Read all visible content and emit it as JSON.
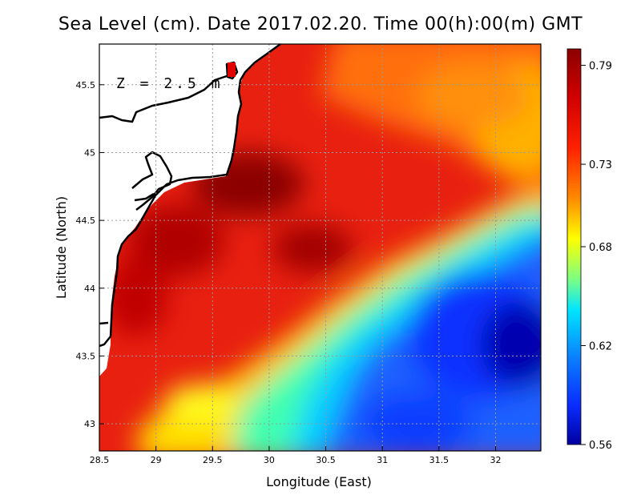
{
  "title": "Sea Level (cm). Date 2017.02.20. Time 00(h):00(m) GMT",
  "depth_label": "Z  =  2.5  m",
  "xlabel": "Longitude (East)",
  "ylabel": "Latitude (North)",
  "x_ticks": [
    "28.5",
    "29",
    "29.5",
    "30",
    "30.5",
    "31",
    "31.5",
    "32"
  ],
  "y_ticks": [
    "43",
    "43.5",
    "44",
    "44.5",
    "45",
    "45.5"
  ],
  "colorbar_ticks": [
    "0.79",
    "0.73",
    "0.68",
    "0.62",
    "0.56"
  ],
  "colors": {
    "coast": "#000000",
    "land": "#ffffff",
    "grid": "#9a9a9a",
    "dark_red": "#8b0000",
    "red": "#e01010",
    "orange": "#ff8c00",
    "yellow": "#ffff00",
    "cyan": "#00e5ff",
    "blue": "#0a3cff",
    "navy": "#0000a0"
  },
  "chart_data": {
    "type": "heatmap",
    "title": "Sea Level (cm). Date 2017.02.20. Time 00(h):00(m) GMT",
    "xlabel": "Longitude (East)",
    "ylabel": "Latitude (North)",
    "xlim": [
      28.5,
      32.4
    ],
    "ylim": [
      42.8,
      45.8
    ],
    "colorbar_range": [
      0.56,
      0.8
    ],
    "colorbar_ticks": [
      0.79,
      0.73,
      0.68,
      0.62,
      0.56
    ],
    "grid": true,
    "field_description_points": [
      {
        "lon": 29.8,
        "lat": 44.8,
        "value": 0.79
      },
      {
        "lon": 29.0,
        "lat": 44.2,
        "value": 0.77
      },
      {
        "lon": 30.3,
        "lat": 45.3,
        "value": 0.76
      },
      {
        "lon": 31.5,
        "lat": 45.4,
        "value": 0.74
      },
      {
        "lon": 32.2,
        "lat": 45.2,
        "value": 0.71
      },
      {
        "lon": 30.8,
        "lat": 44.0,
        "value": 0.69
      },
      {
        "lon": 29.7,
        "lat": 43.1,
        "value": 0.7
      },
      {
        "lon": 30.5,
        "lat": 43.3,
        "value": 0.65
      },
      {
        "lon": 31.5,
        "lat": 43.7,
        "value": 0.6
      },
      {
        "lon": 32.2,
        "lat": 43.6,
        "value": 0.57
      },
      {
        "lon": 31.3,
        "lat": 42.9,
        "value": 0.6
      }
    ]
  }
}
